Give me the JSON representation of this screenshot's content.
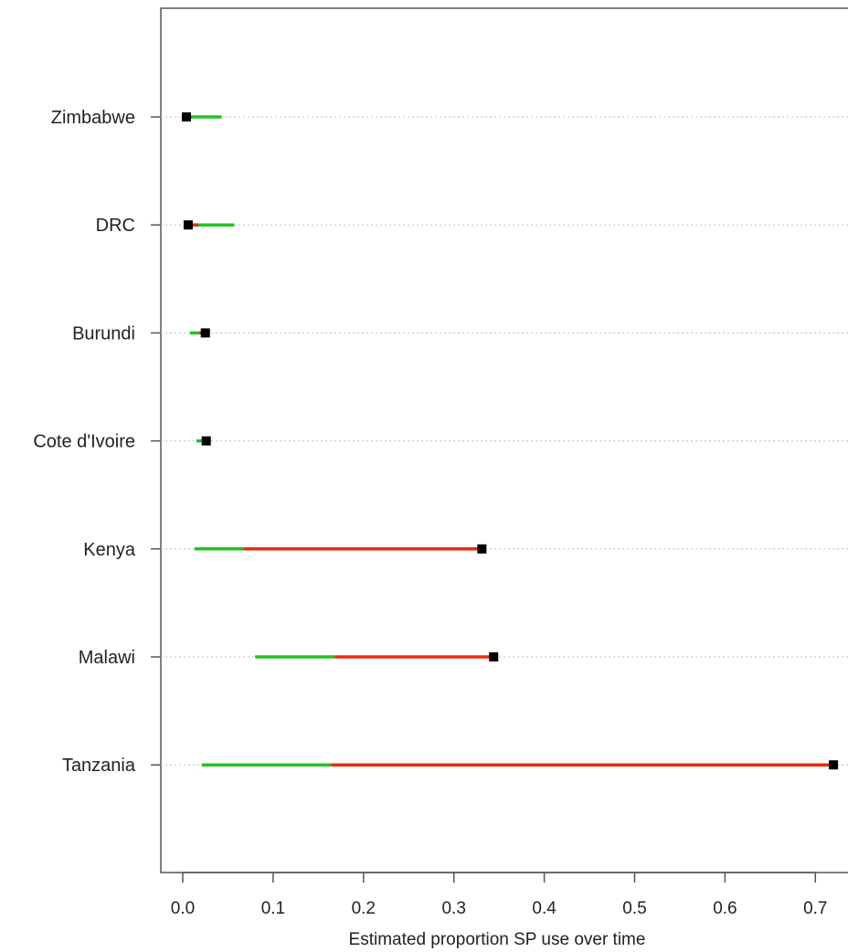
{
  "chart_data": {
    "type": "dot-range",
    "xlabel": "Estimated proportion SP use over time",
    "ylabel": "",
    "xlim": [
      -0.025,
      0.73
    ],
    "xticks": [
      0.0,
      0.1,
      0.2,
      0.3,
      0.4,
      0.5,
      0.6,
      0.7
    ],
    "xtick_labels": [
      "0.0",
      "0.1",
      "0.2",
      "0.3",
      "0.4",
      "0.5",
      "0.6",
      "0.7"
    ],
    "grid": "dotted horizontal reference lines",
    "colors": {
      "green": "#1fc41f",
      "red": "#ee2a10",
      "point": "#000000",
      "grid": "#bfbfbf"
    },
    "categories": [
      "Zimbabwe",
      "DRC",
      "Burundi",
      "Cote d'Ivoire",
      "Kenya",
      "Malawi",
      "Tanzania"
    ],
    "segments": [
      {
        "category": "Zimbabwe",
        "green": [
          0.004,
          0.043
        ],
        "red": [
          0.004,
          0.01
        ],
        "point": 0.004
      },
      {
        "category": "DRC",
        "green": [
          0.006,
          0.057
        ],
        "red": [
          0.006,
          0.017
        ],
        "point": 0.006
      },
      {
        "category": "Burundi",
        "green": [
          0.008,
          0.018
        ],
        "red": [
          0.018,
          0.025
        ],
        "point": 0.025
      },
      {
        "category": "Cote d'Ivoire",
        "green": [
          0.015,
          0.022
        ],
        "red": [
          0.022,
          0.026
        ],
        "point": 0.026
      },
      {
        "category": "Kenya",
        "green": [
          0.013,
          0.067
        ],
        "red": [
          0.067,
          0.331
        ],
        "point": 0.331
      },
      {
        "category": "Malawi",
        "green": [
          0.08,
          0.168
        ],
        "red": [
          0.168,
          0.344
        ],
        "point": 0.344
      },
      {
        "category": "Tanzania",
        "green": [
          0.021,
          0.164
        ],
        "red": [
          0.164,
          0.72
        ],
        "point": 0.72
      }
    ]
  }
}
